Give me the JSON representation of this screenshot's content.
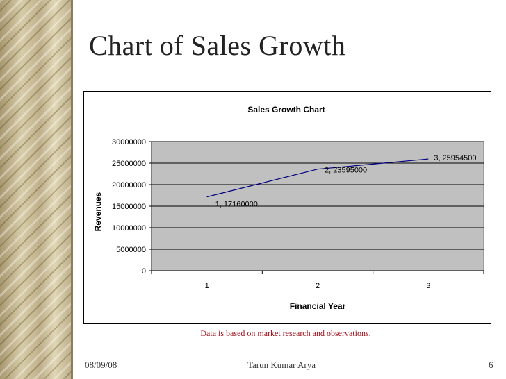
{
  "slide": {
    "title": "Chart of Sales Growth",
    "note": "Data is based on market research and observations.",
    "footer": {
      "date": "08/09/08",
      "author": "Tarun Kumar Arya",
      "page": "6"
    }
  },
  "chart_data": {
    "type": "line",
    "title": "Sales Growth Chart",
    "xlabel": "Financial Year",
    "ylabel": "Revenues",
    "categories": [
      "1",
      "2",
      "3"
    ],
    "series": [
      {
        "values": [
          17160000,
          23595000,
          25954500
        ]
      }
    ],
    "data_labels": [
      "1, 17160000",
      "2, 23595000",
      "3, 25954500"
    ],
    "ylim": [
      0,
      30000000
    ],
    "yticks": [
      "0",
      "5000000",
      "10000000",
      "15000000",
      "20000000",
      "25000000",
      "30000000"
    ],
    "grid": true,
    "legend": "none",
    "colors": {
      "plot_bg": "#c0c0c0",
      "line": "#000080",
      "grid": "#000000"
    }
  }
}
